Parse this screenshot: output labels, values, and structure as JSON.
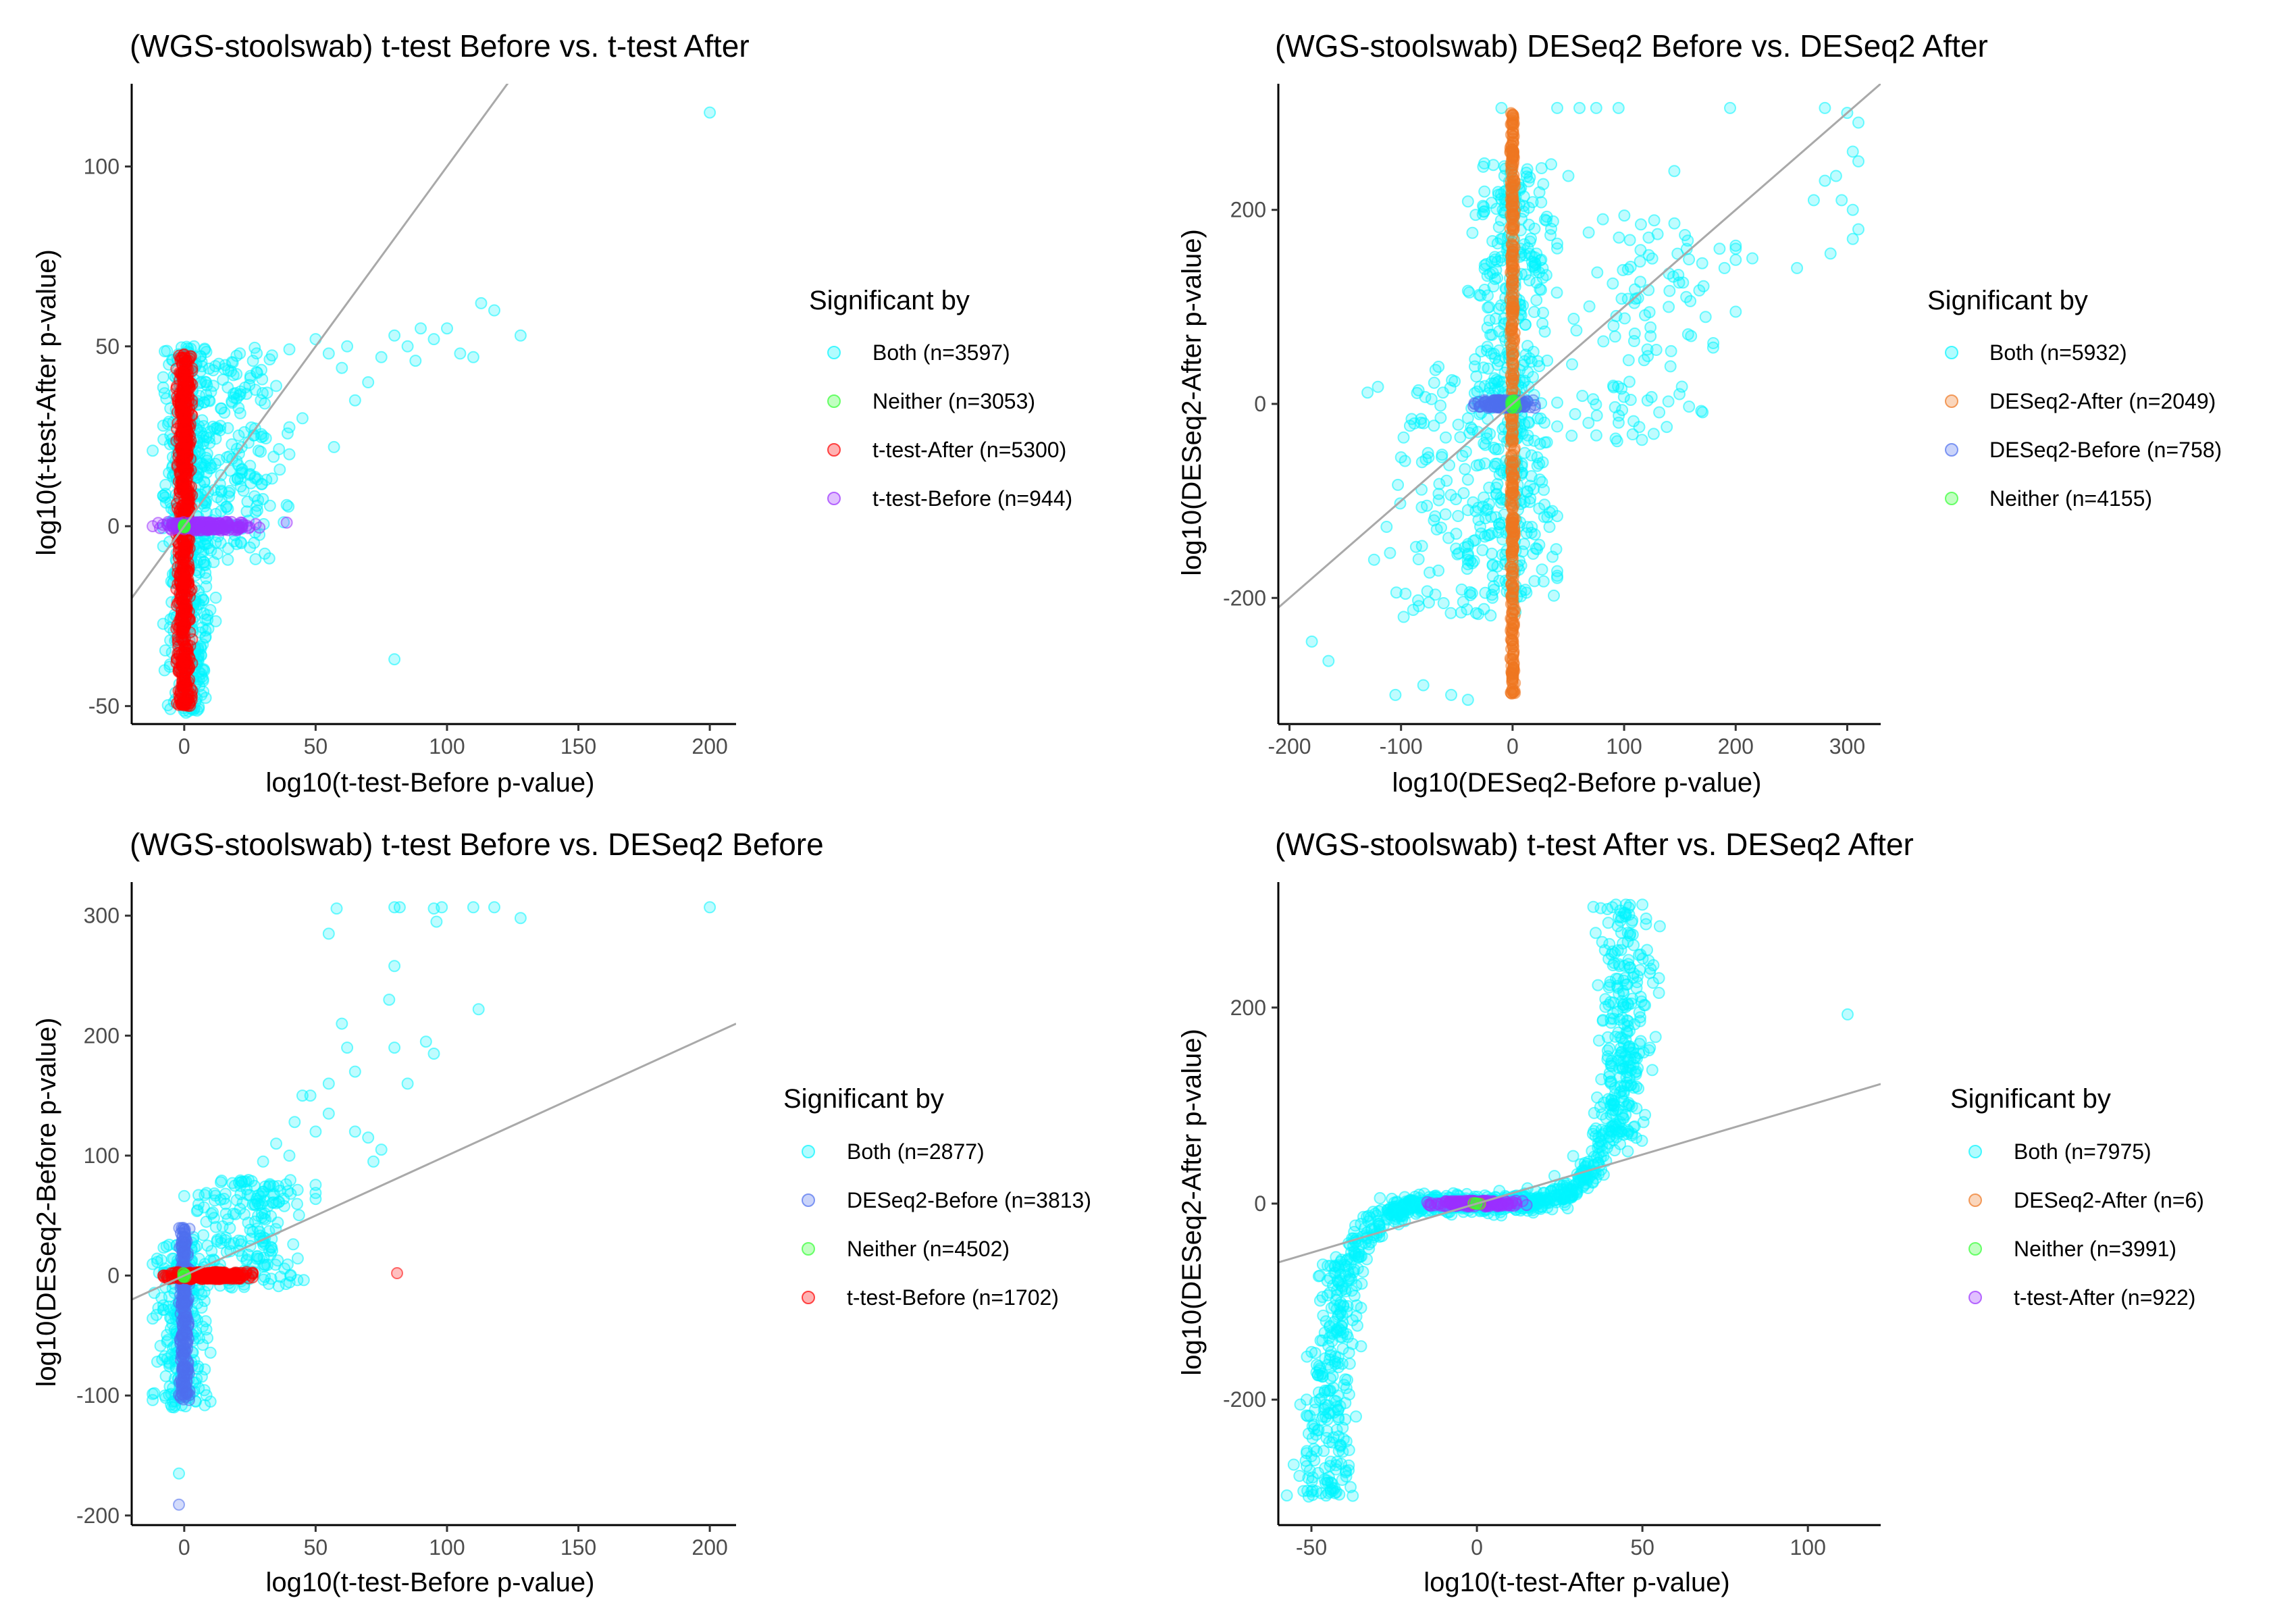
{
  "chart_data": [
    {
      "type": "scatter",
      "title": "(WGS-stoolswab) t-test Before vs. t-test After",
      "xlabel": "log10(t-test-Before p-value)",
      "ylabel": "log10(t-test-After p-value)",
      "xlim": [
        -20,
        210
      ],
      "ylim": [
        -55,
        123
      ],
      "xticks": [
        0,
        50,
        100,
        150,
        200
      ],
      "yticks": [
        -50,
        0,
        50,
        100
      ],
      "grid": false,
      "reference_line": {
        "slope": 1,
        "intercept": 0
      },
      "legend": {
        "title": "Significant by",
        "position": "right",
        "entries": [
          {
            "label": "Both (n=3597)",
            "color": "#00F5FF"
          },
          {
            "label": "Neither (n=3053)",
            "color": "#33FF33"
          },
          {
            "label": "t-test-After (n=5300)",
            "color": "#FF0000"
          },
          {
            "label": "t-test-Before (n=944)",
            "color": "#9B30FF"
          }
        ]
      },
      "series": [
        {
          "name": "Both (n=3597)",
          "color": "#00F5FF",
          "kind": "cloud",
          "x_range": [
            -8,
            12
          ],
          "y_range": [
            -52,
            50
          ],
          "count": 500
        },
        {
          "name": "Both (n=3597)",
          "color": "#00F5FF",
          "kind": "cloud",
          "x_range": [
            0,
            40
          ],
          "y_range": [
            -10,
            50
          ],
          "count": 180
        },
        {
          "name": "Both (n=3597)",
          "color": "#00F5FF",
          "kind": "points",
          "points": [
            [
              45,
              30
            ],
            [
              50,
              52
            ],
            [
              55,
              48
            ],
            [
              60,
              44
            ],
            [
              62,
              50
            ],
            [
              65,
              35
            ],
            [
              70,
              40
            ],
            [
              75,
              47
            ],
            [
              80,
              53
            ],
            [
              85,
              50
            ],
            [
              88,
              46
            ],
            [
              90,
              55
            ],
            [
              95,
              52
            ],
            [
              100,
              55
            ],
            [
              105,
              48
            ],
            [
              110,
              47
            ],
            [
              113,
              62
            ],
            [
              118,
              60
            ],
            [
              128,
              53
            ],
            [
              80,
              -37
            ],
            [
              200,
              115
            ],
            [
              -12,
              21
            ],
            [
              30,
              25
            ],
            [
              40,
              20
            ],
            [
              22,
              15
            ],
            [
              57,
              22
            ],
            [
              35,
              39
            ]
          ]
        },
        {
          "name": "t-test-After (n=5300)",
          "color": "#FF0000",
          "kind": "cloud",
          "x_range": [
            -3,
            3
          ],
          "y_range": [
            -50,
            48
          ],
          "count": 650
        },
        {
          "name": "t-test-Before (n=944)",
          "color": "#9B30FF",
          "kind": "cloud",
          "x_range": [
            -10,
            30
          ],
          "y_range": [
            -1.2,
            1.2
          ],
          "count": 160
        },
        {
          "name": "t-test-Before (n=944)",
          "color": "#9B30FF",
          "kind": "points",
          "points": [
            [
              -12,
              0
            ],
            [
              39,
              1
            ]
          ]
        },
        {
          "name": "Neither (n=3053)",
          "color": "#33FF33",
          "kind": "cloud",
          "x_range": [
            -0.4,
            0.4
          ],
          "y_range": [
            -0.4,
            0.4
          ],
          "count": 8
        }
      ]
    },
    {
      "type": "scatter",
      "title": "(WGS-stoolswab) DESeq2 Before vs. DESeq2 After",
      "xlabel": "log10(DESeq2-Before p-value)",
      "ylabel": "log10(DESeq2-After p-value)",
      "xlim": [
        -210,
        330
      ],
      "ylim": [
        -330,
        330
      ],
      "xticks": [
        -200,
        -100,
        0,
        100,
        200,
        300
      ],
      "yticks": [
        -200,
        0,
        200
      ],
      "grid": false,
      "reference_line": {
        "slope": 1,
        "intercept": 0
      },
      "legend": {
        "title": "Significant by",
        "position": "right",
        "entries": [
          {
            "label": "Both (n=5932)",
            "color": "#00F5FF"
          },
          {
            "label": "DESeq2-After (n=2049)",
            "color": "#EE7621"
          },
          {
            "label": "DESeq2-Before (n=758)",
            "color": "#4F6FEE"
          },
          {
            "label": "Neither (n=4155)",
            "color": "#33FF33"
          }
        ]
      },
      "series": [
        {
          "name": "Both (n=5932)",
          "color": "#00F5FF",
          "kind": "cloud",
          "x_range": [
            -40,
            40
          ],
          "y_range": [
            -200,
            250
          ],
          "count": 450
        },
        {
          "name": "Both (n=5932)",
          "color": "#00F5FF",
          "kind": "cloud",
          "x_range": [
            -130,
            30
          ],
          "y_range": [
            -220,
            40
          ],
          "count": 150
        },
        {
          "name": "Both (n=5932)",
          "color": "#00F5FF",
          "kind": "cloud",
          "x_range": [
            20,
            200
          ],
          "y_range": [
            -40,
            200
          ],
          "count": 110
        },
        {
          "name": "Both (n=5932)",
          "color": "#00F5FF",
          "kind": "points",
          "points": [
            [
              -180,
              -245
            ],
            [
              -165,
              -265
            ],
            [
              -105,
              -300
            ],
            [
              -80,
              -290
            ],
            [
              -55,
              -300
            ],
            [
              -40,
              -305
            ],
            [
              -10,
              305
            ],
            [
              40,
              305
            ],
            [
              60,
              305
            ],
            [
              75,
              305
            ],
            [
              95,
              305
            ],
            [
              195,
              305
            ],
            [
              280,
              305
            ],
            [
              300,
              300
            ],
            [
              310,
              290
            ],
            [
              305,
              260
            ],
            [
              310,
              250
            ],
            [
              290,
              235
            ],
            [
              295,
              210
            ],
            [
              280,
              230
            ],
            [
              270,
              210
            ],
            [
              305,
              200
            ],
            [
              310,
              180
            ],
            [
              305,
              170
            ],
            [
              285,
              155
            ],
            [
              255,
              140
            ],
            [
              215,
              150
            ],
            [
              200,
              160
            ],
            [
              190,
              140
            ],
            [
              170,
              145
            ],
            [
              160,
              70
            ],
            [
              200,
              95
            ],
            [
              130,
              175
            ],
            [
              115,
              185
            ],
            [
              140,
              100
            ],
            [
              145,
              240
            ],
            [
              50,
              235
            ]
          ]
        },
        {
          "name": "DESeq2-After (n=2049)",
          "color": "#EE7621",
          "kind": "cloud",
          "x_range": [
            -2,
            2
          ],
          "y_range": [
            -300,
            300
          ],
          "count": 420
        },
        {
          "name": "DESeq2-Before (n=758)",
          "color": "#4F6FEE",
          "kind": "cloud",
          "x_range": [
            -35,
            20
          ],
          "y_range": [
            -4,
            4
          ],
          "count": 140
        },
        {
          "name": "Neither (n=4155)",
          "color": "#33FF33",
          "kind": "cloud",
          "x_range": [
            -3,
            3
          ],
          "y_range": [
            -4,
            4
          ],
          "count": 12
        }
      ]
    },
    {
      "type": "scatter",
      "title": "(WGS-stoolswab) t-test Before vs. DESeq2 Before",
      "xlabel": "log10(t-test-Before p-value)",
      "ylabel": "log10(DESeq2-Before p-value)",
      "xlim": [
        -20,
        210
      ],
      "ylim": [
        -208,
        328
      ],
      "xticks": [
        0,
        50,
        100,
        150,
        200
      ],
      "yticks": [
        -200,
        -100,
        0,
        100,
        200,
        300
      ],
      "grid": false,
      "reference_line": {
        "slope": 1,
        "intercept": 0
      },
      "legend": {
        "title": "Significant by",
        "position": "right",
        "entries": [
          {
            "label": "Both (n=2877)",
            "color": "#00F5FF"
          },
          {
            "label": "DESeq2-Before (n=3813)",
            "color": "#4F6FEE"
          },
          {
            "label": "Neither (n=4502)",
            "color": "#33FF33"
          },
          {
            "label": "t-test-Before (n=1702)",
            "color": "#FF0000"
          }
        ]
      },
      "series": [
        {
          "name": "Both (n=2877)",
          "color": "#00F5FF",
          "kind": "cloud",
          "x_range": [
            -12,
            10
          ],
          "y_range": [
            -110,
            30
          ],
          "count": 260
        },
        {
          "name": "Both (n=2877)",
          "color": "#00F5FF",
          "kind": "cloud",
          "x_range": [
            0,
            50
          ],
          "y_range": [
            -10,
            80
          ],
          "count": 200
        },
        {
          "name": "Both (n=2877)",
          "color": "#00F5FF",
          "kind": "points",
          "points": [
            [
              58,
              306
            ],
            [
              55,
              285
            ],
            [
              80,
              307
            ],
            [
              82,
              307
            ],
            [
              95,
              306
            ],
            [
              96,
              295
            ],
            [
              98,
              307
            ],
            [
              110,
              307
            ],
            [
              118,
              307
            ],
            [
              128,
              298
            ],
            [
              200,
              307
            ],
            [
              80,
              258
            ],
            [
              78,
              230
            ],
            [
              60,
              210
            ],
            [
              62,
              190
            ],
            [
              65,
              170
            ],
            [
              55,
              160
            ],
            [
              45,
              150
            ],
            [
              48,
              150
            ],
            [
              55,
              135
            ],
            [
              42,
              128
            ],
            [
              50,
              120
            ],
            [
              35,
              110
            ],
            [
              30,
              95
            ],
            [
              40,
              100
            ],
            [
              70,
              115
            ],
            [
              72,
              95
            ],
            [
              80,
              190
            ],
            [
              92,
              195
            ],
            [
              95,
              185
            ],
            [
              112,
              222
            ],
            [
              85,
              160
            ],
            [
              75,
              105
            ],
            [
              65,
              120
            ],
            [
              -2,
              -165
            ]
          ]
        },
        {
          "name": "DESeq2-Before (n=3813)",
          "color": "#4F6FEE",
          "kind": "cloud",
          "x_range": [
            -2,
            2
          ],
          "y_range": [
            -105,
            40
          ],
          "count": 260
        },
        {
          "name": "DESeq2-Before (n=3813)",
          "color": "#4F6FEE",
          "kind": "points",
          "points": [
            [
              -2,
              -191
            ]
          ]
        },
        {
          "name": "t-test-Before (n=1702)",
          "color": "#FF0000",
          "kind": "cloud",
          "x_range": [
            -8,
            26
          ],
          "y_range": [
            -3,
            3
          ],
          "count": 220
        },
        {
          "name": "t-test-Before (n=1702)",
          "color": "#FF0000",
          "kind": "points",
          "points": [
            [
              81,
              2
            ]
          ]
        },
        {
          "name": "Neither (n=4502)",
          "color": "#33FF33",
          "kind": "cloud",
          "x_range": [
            -1,
            1
          ],
          "y_range": [
            -2,
            2
          ],
          "count": 8
        }
      ]
    },
    {
      "type": "scatter",
      "title": "(WGS-stoolswab) t-test After vs. DESeq2 After",
      "xlabel": "log10(t-test-After p-value)",
      "ylabel": "log10(DESeq2-After p-value)",
      "xlim": [
        -60,
        122
      ],
      "ylim": [
        -328,
        328
      ],
      "xticks": [
        -50,
        0,
        50,
        100
      ],
      "yticks": [
        -200,
        0,
        200
      ],
      "grid": false,
      "reference_line": {
        "slope": 1,
        "intercept": 0
      },
      "legend": {
        "title": "Significant by",
        "position": "right",
        "entries": [
          {
            "label": "Both (n=7975)",
            "color": "#00F5FF"
          },
          {
            "label": "DESeq2-After (n=6)",
            "color": "#EE7621"
          },
          {
            "label": "Neither (n=3991)",
            "color": "#33FF33"
          },
          {
            "label": "t-test-After (n=922)",
            "color": "#9B30FF"
          }
        ]
      },
      "series": [
        {
          "name": "Both (n=7975)",
          "color": "#00F5FF",
          "kind": "curve",
          "x_range": [
            -52,
            52
          ],
          "y_scale": 300,
          "exponent": 5,
          "spread_x": 5,
          "spread_y": 10,
          "count": 800
        },
        {
          "name": "Both (n=7975)",
          "color": "#00F5FF",
          "kind": "cloud",
          "x_range": [
            -50,
            -35
          ],
          "y_range": [
            -300,
            -60
          ],
          "count": 150
        },
        {
          "name": "Both (n=7975)",
          "color": "#00F5FF",
          "kind": "cloud",
          "x_range": [
            35,
            53
          ],
          "y_range": [
            60,
            305
          ],
          "count": 170
        },
        {
          "name": "Both (n=7975)",
          "color": "#00F5FF",
          "kind": "points",
          "points": [
            [
              112,
              193
            ],
            [
              55,
              230
            ],
            [
              55,
              215
            ],
            [
              54,
              170
            ],
            [
              45,
              305
            ],
            [
              42,
              305
            ],
            [
              50,
              305
            ]
          ]
        },
        {
          "name": "t-test-After (n=922)",
          "color": "#9B30FF",
          "kind": "cloud",
          "x_range": [
            -15,
            15
          ],
          "y_range": [
            -3,
            3
          ],
          "count": 150
        },
        {
          "name": "DESeq2-After (n=6)",
          "color": "#EE7621",
          "kind": "points",
          "points": [
            [
              -1,
              0
            ],
            [
              1,
              0
            ]
          ]
        },
        {
          "name": "Neither (n=3991)",
          "color": "#33FF33",
          "kind": "cloud",
          "x_range": [
            -1,
            1
          ],
          "y_range": [
            -1,
            1
          ],
          "count": 5
        }
      ]
    }
  ]
}
